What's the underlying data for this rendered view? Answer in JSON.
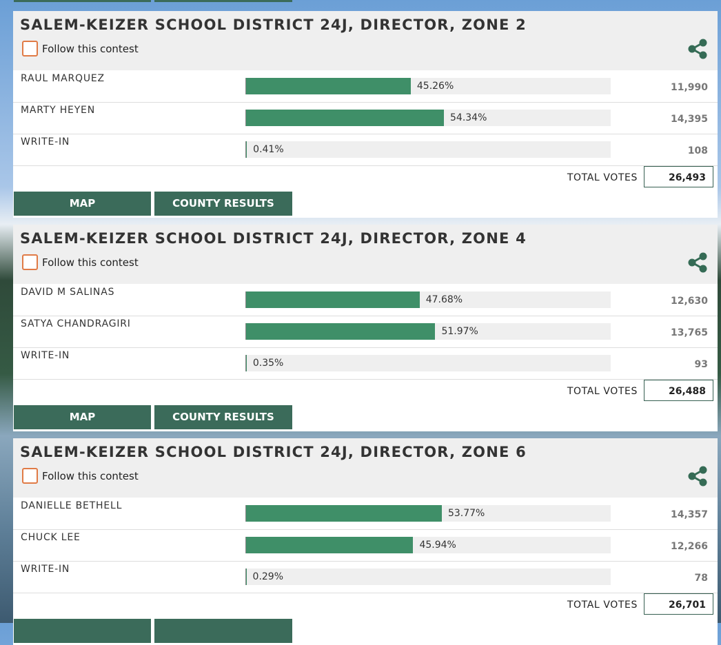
{
  "contests": [
    {
      "title": "SALEM-KEIZER SCHOOL DISTRICT 24J, DIRECTOR, ZONE 2",
      "follow": "Follow this contest",
      "candidates": [
        {
          "name": "RAUL MARQUEZ",
          "percent": 45.26,
          "percent_label": "45.26%",
          "votes": "11,990"
        },
        {
          "name": "MARTY HEYEN",
          "percent": 54.34,
          "percent_label": "54.34%",
          "votes": "14,395"
        },
        {
          "name": "WRITE-IN",
          "percent": 0.41,
          "percent_label": "0.41%",
          "votes": "108"
        }
      ],
      "total_label": "TOTAL VOTES",
      "total": "26,493",
      "buttons": [
        "MAP",
        "COUNTY RESULTS"
      ]
    },
    {
      "title": "SALEM-KEIZER SCHOOL DISTRICT 24J, DIRECTOR, ZONE 4",
      "follow": "Follow this contest",
      "candidates": [
        {
          "name": "DAVID M SALINAS",
          "percent": 47.68,
          "percent_label": "47.68%",
          "votes": "12,630"
        },
        {
          "name": "SATYA CHANDRAGIRI",
          "percent": 51.97,
          "percent_label": "51.97%",
          "votes": "13,765"
        },
        {
          "name": "WRITE-IN",
          "percent": 0.35,
          "percent_label": "0.35%",
          "votes": "93"
        }
      ],
      "total_label": "TOTAL VOTES",
      "total": "26,488",
      "buttons": [
        "MAP",
        "COUNTY RESULTS"
      ]
    },
    {
      "title": "SALEM-KEIZER SCHOOL DISTRICT 24J, DIRECTOR, ZONE 6",
      "follow": "Follow this contest",
      "candidates": [
        {
          "name": "DANIELLE BETHELL",
          "percent": 53.77,
          "percent_label": "53.77%",
          "votes": "14,357"
        },
        {
          "name": "CHUCK LEE",
          "percent": 45.94,
          "percent_label": "45.94%",
          "votes": "12,266"
        },
        {
          "name": "WRITE-IN",
          "percent": 0.29,
          "percent_label": "0.29%",
          "votes": "78"
        }
      ],
      "total_label": "TOTAL VOTES",
      "total": "26,701"
    }
  ]
}
